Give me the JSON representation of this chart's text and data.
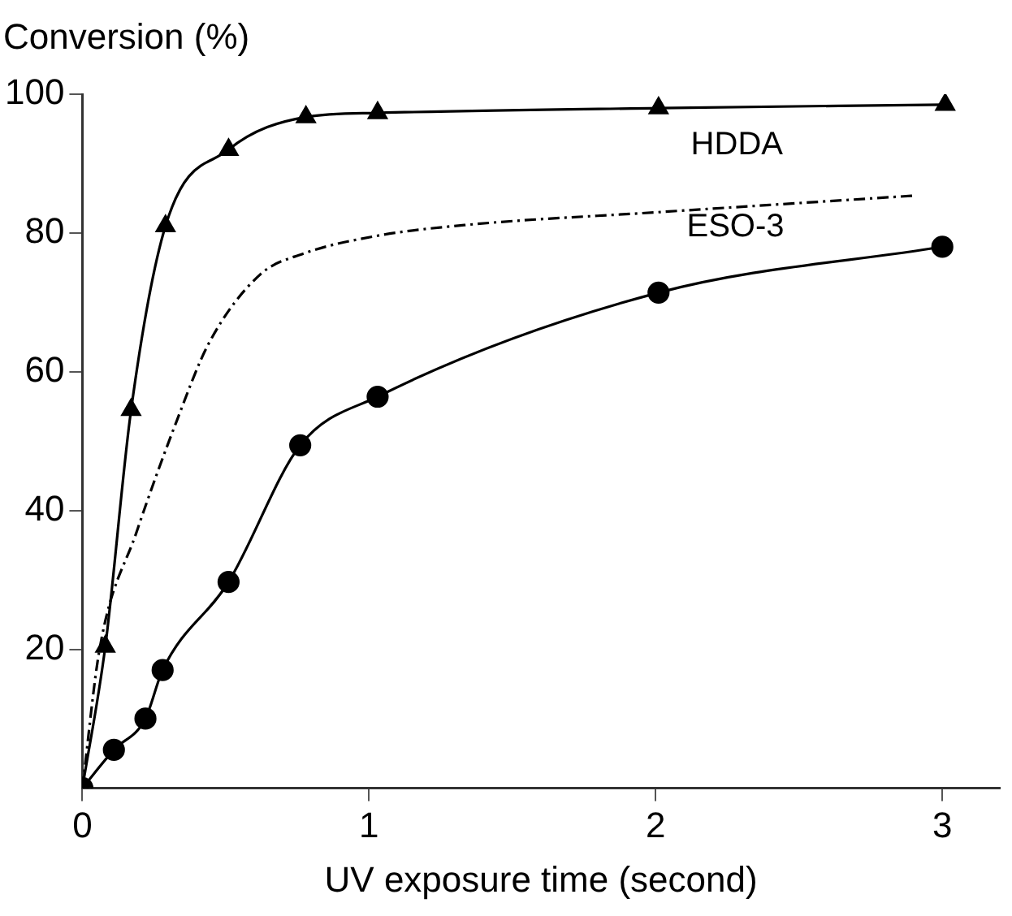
{
  "chart_data": {
    "type": "line",
    "xlabel": "UV exposure time (second)",
    "ylabel": "Conversion (%)",
    "xlim": [
      0,
      3.2
    ],
    "xticks": [
      0,
      1,
      2,
      3
    ],
    "ylim": [
      0,
      100
    ],
    "yticks": [
      20,
      40,
      60,
      80,
      100
    ],
    "grid": false,
    "legend": false,
    "series": [
      {
        "name": "HDDA",
        "color": "#000000",
        "marker": "triangle",
        "line_style": "solid",
        "x": [
          0,
          0.08,
          0.17,
          0.29,
          0.51,
          0.78,
          1.03,
          2.01,
          3.01
        ],
        "values": [
          0,
          20.4,
          54.5,
          81,
          92,
          96.7,
          97.3,
          98,
          98.5
        ]
      },
      {
        "name": "ESO-3",
        "color": "#000000",
        "marker": "circle",
        "line_style": "solid",
        "x": [
          0,
          0.11,
          0.22,
          0.28,
          0.51,
          0.76,
          1.03,
          2.01,
          3.0
        ],
        "values": [
          0,
          5.5,
          10,
          17,
          29.7,
          49.4,
          56.4,
          71.4,
          78
        ]
      },
      {
        "color": "#000000",
        "marker": "none",
        "line_style": "dashed",
        "x": [
          0,
          0.06,
          0.19,
          0.33,
          0.44,
          0.62,
          0.77,
          1.03,
          1.35,
          2.01,
          2.91
        ],
        "values": [
          0,
          20,
          37,
          53,
          64,
          74,
          77,
          79.6,
          81.2,
          83,
          85.4
        ]
      }
    ]
  }
}
